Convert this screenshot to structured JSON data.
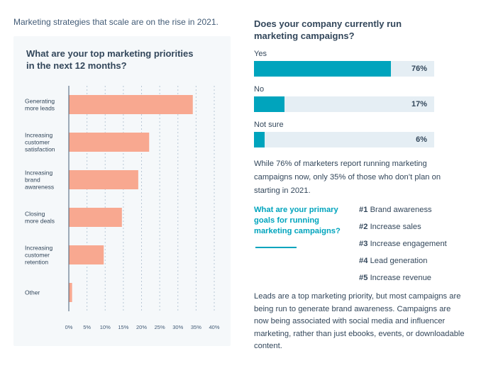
{
  "intro": "Marketing strategies that scale are on the rise in 2021.",
  "priorities": {
    "title": "What are your top marketing priorities in the next 12 months?"
  },
  "chart_data": [
    {
      "type": "bar",
      "orientation": "horizontal",
      "title": "What are your top marketing priorities in the next 12 months?",
      "categories": [
        [
          "Generating",
          "more leads"
        ],
        [
          "Increasing",
          "customer",
          "satisfaction"
        ],
        [
          "Increasing",
          "brand",
          "awareness"
        ],
        [
          "Closing",
          "more deals"
        ],
        [
          "Increasing",
          "customer",
          "retention"
        ],
        [
          "Other"
        ]
      ],
      "values": [
        34,
        22,
        19,
        14.5,
        9.5,
        0.8
      ],
      "xlim": [
        0,
        40
      ],
      "xticks": [
        0,
        5,
        10,
        15,
        20,
        25,
        30,
        35,
        40
      ],
      "tick_suffix": "%",
      "grid": true,
      "colors": {
        "bar": "#f8a890",
        "grid": "#b9c7d6",
        "axis": "#425b76"
      }
    },
    {
      "type": "bar",
      "orientation": "horizontal",
      "title": "Does your company currently run marketing campaigns?",
      "categories": [
        "Yes",
        "No",
        "Not sure"
      ],
      "values": [
        76,
        17,
        6
      ],
      "xlim": [
        0,
        100
      ],
      "colors": {
        "fill": "#00a4bd",
        "track": "#e5eef4"
      }
    }
  ],
  "campaigns": {
    "title": "Does your company currently run marketing campaigns?",
    "rows": [
      {
        "label": "Yes",
        "value": 76,
        "value_label": "76%"
      },
      {
        "label": "No",
        "value": 17,
        "value_label": "17%"
      },
      {
        "label": "Not sure",
        "value": 6,
        "value_label": "6%"
      }
    ]
  },
  "note": "While 76% of marketers report running marketing campaigns now, only 35% of those who don’t plan on starting in 2021.",
  "goals": {
    "question": "What are your primary goals for running marketing campaigns?",
    "items": [
      {
        "rank": "#1",
        "text": "Brand awareness"
      },
      {
        "rank": "#2",
        "text": "Increase sales"
      },
      {
        "rank": "#3",
        "text": "Increase engagement"
      },
      {
        "rank": "#4",
        "text": "Lead generation"
      },
      {
        "rank": "#5",
        "text": "Increase revenue"
      }
    ]
  },
  "closing": "Leads are a top marketing priority, but most campaigns are being run to generate brand awareness. Campaigns are now being associated with social media and influencer marketing, rather than just ebooks, events, or downloadable content."
}
